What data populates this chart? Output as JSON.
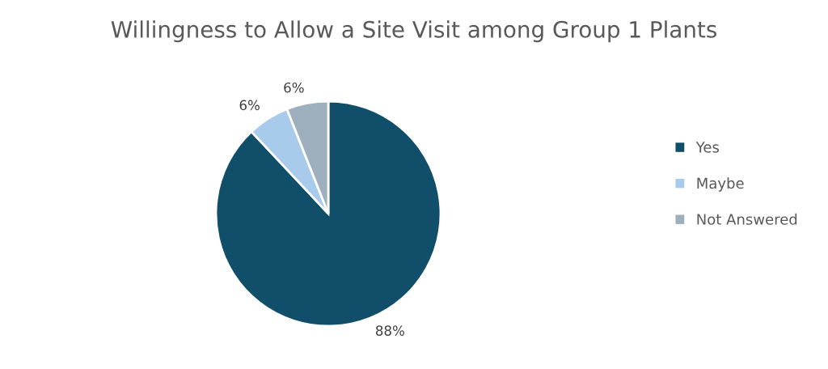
{
  "chart_data": {
    "type": "pie",
    "title": "Willingness to Allow a Site Visit among Group 1 Plants",
    "categories": [
      "Yes",
      "Maybe",
      "Not Answered"
    ],
    "values": [
      88,
      6,
      6
    ],
    "colors": [
      "#104e69",
      "#a8cbec",
      "#9eafbe"
    ],
    "value_labels": [
      "88%",
      "6%",
      "6%"
    ],
    "legend": "right"
  }
}
